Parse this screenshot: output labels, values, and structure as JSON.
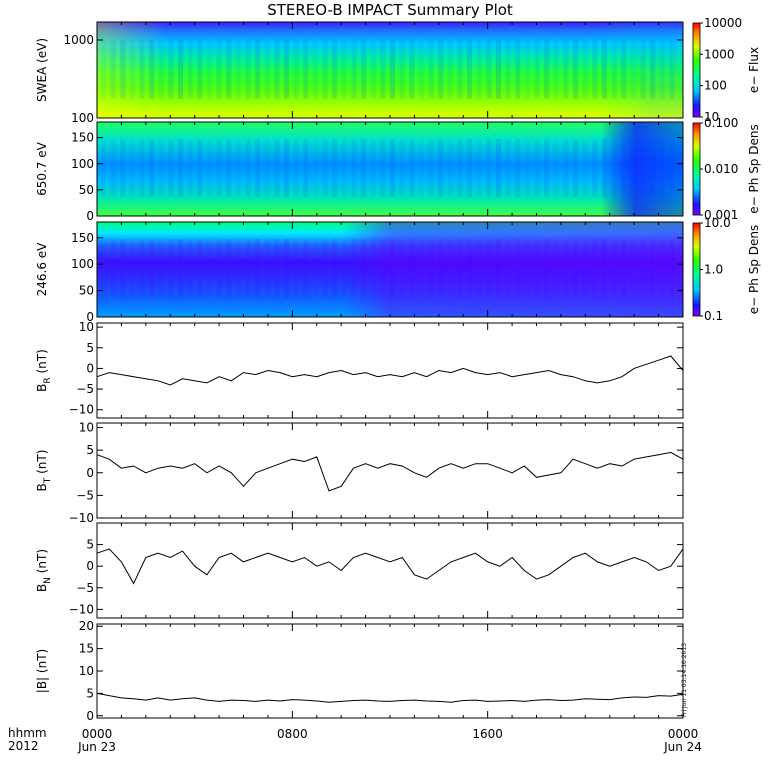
{
  "chart_data": {
    "title": "STEREO-B IMPACT Summary Plot",
    "x_ticks": [
      "0000",
      "0800",
      "1600",
      "0000"
    ],
    "x_tick_dates": [
      "Jun 23",
      "",
      "",
      "Jun 24"
    ],
    "x_range_hours": [
      0,
      24
    ],
    "time_label": "hhmm",
    "year_label": "2012",
    "timestamp": "Fri Jun 11 03:14:10 2013",
    "panels": [
      {
        "type": "heatmap",
        "ylabel": "SWEA (eV)",
        "yscale": "log",
        "ylim": [
          100,
          1700
        ],
        "y_ticks": [
          "100",
          "1000"
        ],
        "colorbar": {
          "label": "e− Flux",
          "scale": "log",
          "range": [
            10,
            10000
          ],
          "ticks": [
            "10",
            "100",
            "1000",
            "10000"
          ]
        }
      },
      {
        "type": "heatmap",
        "ylabel": "650.7 eV",
        "ylim": [
          0,
          180
        ],
        "y_ticks": [
          "0",
          "50",
          "100",
          "150"
        ],
        "colorbar": {
          "label": "e− Ph Sp Dens",
          "scale": "log",
          "range": [
            0.001,
            0.1
          ],
          "ticks": [
            "0.001",
            "0.010",
            "0.100"
          ]
        }
      },
      {
        "type": "heatmap",
        "ylabel": "246.6 eV",
        "ylim": [
          0,
          180
        ],
        "y_ticks": [
          "0",
          "50",
          "100",
          "150"
        ],
        "colorbar": {
          "label": "e− Ph Sp Dens",
          "scale": "log",
          "range": [
            0.1,
            10
          ],
          "ticks": [
            "0.1",
            "1.0",
            "10.0"
          ]
        }
      },
      {
        "type": "line",
        "ylabel": "B",
        "ylabel_sub": "R",
        "ylabel_unit": "(nT)",
        "ylim": [
          -12,
          11
        ],
        "y_ticks": [
          "−10",
          "−5",
          "0",
          "5",
          "10"
        ],
        "x": [
          0,
          0.5,
          1,
          1.5,
          2,
          2.5,
          3,
          3.5,
          4,
          4.5,
          5,
          5.5,
          6,
          6.5,
          7,
          7.5,
          8,
          8.5,
          9,
          9.5,
          10,
          10.5,
          11,
          11.5,
          12,
          12.5,
          13,
          13.5,
          14,
          14.5,
          15,
          15.5,
          16,
          16.5,
          17,
          17.5,
          18,
          18.5,
          19,
          19.5,
          20,
          20.5,
          21,
          21.5,
          22,
          22.5,
          23,
          23.5,
          24
        ],
        "y": [
          -2,
          -1,
          -1.5,
          -2,
          -2.5,
          -3,
          -4,
          -2.5,
          -3,
          -3.5,
          -2,
          -3,
          -1,
          -1.5,
          -0.5,
          -1,
          -2,
          -1.5,
          -2,
          -1,
          -0.5,
          -1.5,
          -1,
          -2,
          -1.5,
          -2,
          -1,
          -2,
          -0.5,
          -1,
          0,
          -1,
          -1.5,
          -1,
          -2,
          -1.5,
          -1,
          -0.5,
          -1.5,
          -2,
          -3,
          -3.5,
          -3,
          -2,
          0,
          1,
          2,
          3,
          -0.5
        ]
      },
      {
        "type": "line",
        "ylabel": "B",
        "ylabel_sub": "T",
        "ylabel_unit": "(nT)",
        "ylim": [
          -10,
          11
        ],
        "y_ticks": [
          "−10",
          "−5",
          "0",
          "5",
          "10"
        ],
        "x": [
          0,
          0.5,
          1,
          1.5,
          2,
          2.5,
          3,
          3.5,
          4,
          4.5,
          5,
          5.5,
          6,
          6.5,
          7,
          7.5,
          8,
          8.5,
          9,
          9.5,
          10,
          10.5,
          11,
          11.5,
          12,
          12.5,
          13,
          13.5,
          14,
          14.5,
          15,
          15.5,
          16,
          16.5,
          17,
          17.5,
          18,
          18.5,
          19,
          19.5,
          20,
          20.5,
          21,
          21.5,
          22,
          22.5,
          23,
          23.5,
          24
        ],
        "y": [
          4,
          3,
          1,
          1.5,
          0,
          1,
          1.5,
          1,
          2,
          0,
          1.5,
          0,
          -3,
          0,
          1,
          2,
          3,
          2.5,
          3.5,
          -4,
          -3,
          1,
          2,
          1,
          2,
          1.5,
          0,
          -1,
          1,
          2,
          1,
          2,
          2,
          1,
          0,
          1.5,
          -1,
          -0.5,
          0,
          3,
          2,
          1,
          2,
          1.5,
          3,
          3.5,
          4,
          4.5,
          3
        ]
      },
      {
        "type": "line",
        "ylabel": "B",
        "ylabel_sub": "N",
        "ylabel_unit": "(nT)",
        "ylim": [
          -12,
          10
        ],
        "y_ticks": [
          "−10",
          "−5",
          "0",
          "5"
        ],
        "x": [
          0,
          0.5,
          1,
          1.5,
          2,
          2.5,
          3,
          3.5,
          4,
          4.5,
          5,
          5.5,
          6,
          6.5,
          7,
          7.5,
          8,
          8.5,
          9,
          9.5,
          10,
          10.5,
          11,
          11.5,
          12,
          12.5,
          13,
          13.5,
          14,
          14.5,
          15,
          15.5,
          16,
          16.5,
          17,
          17.5,
          18,
          18.5,
          19,
          19.5,
          20,
          20.5,
          21,
          21.5,
          22,
          22.5,
          23,
          23.5,
          24
        ],
        "y": [
          3,
          4,
          1,
          -4,
          2,
          3,
          2,
          3.5,
          0,
          -2,
          2,
          3,
          1,
          2,
          3,
          2,
          1,
          2,
          0,
          1,
          -1,
          2,
          3,
          2,
          1,
          2,
          -2,
          -3,
          -1,
          1,
          2,
          3,
          1,
          0,
          2,
          -1,
          -3,
          -2,
          0,
          2,
          3,
          1,
          0,
          1,
          2,
          1,
          -1,
          0,
          4
        ]
      },
      {
        "type": "line",
        "ylabel": "|B| (nT)",
        "ylim": [
          -0.5,
          20.5
        ],
        "y_ticks": [
          "0",
          "5",
          "10",
          "15",
          "20"
        ],
        "x": [
          0,
          0.5,
          1,
          1.5,
          2,
          2.5,
          3,
          3.5,
          4,
          4.5,
          5,
          5.5,
          6,
          6.5,
          7,
          7.5,
          8,
          8.5,
          9,
          9.5,
          10,
          10.5,
          11,
          11.5,
          12,
          12.5,
          13,
          13.5,
          14,
          14.5,
          15,
          15.5,
          16,
          16.5,
          17,
          17.5,
          18,
          18.5,
          19,
          19.5,
          20,
          20.5,
          21,
          21.5,
          22,
          22.5,
          23,
          23.5,
          24
        ],
        "y": [
          5,
          4.5,
          4,
          3.8,
          3.5,
          4,
          3.5,
          3.8,
          4,
          3.5,
          3.2,
          3.5,
          3.4,
          3.2,
          3.5,
          3.3,
          3.6,
          3.5,
          3.3,
          3,
          3.2,
          3.4,
          3.5,
          3.3,
          3.2,
          3.4,
          3.5,
          3.3,
          3.2,
          3,
          3.4,
          3.5,
          3.2,
          3.3,
          3.4,
          3.2,
          3.5,
          3.6,
          3.4,
          3.5,
          3.8,
          3.7,
          3.6,
          4,
          4.2,
          4.1,
          4.5,
          4.4,
          4.8
        ]
      }
    ]
  }
}
